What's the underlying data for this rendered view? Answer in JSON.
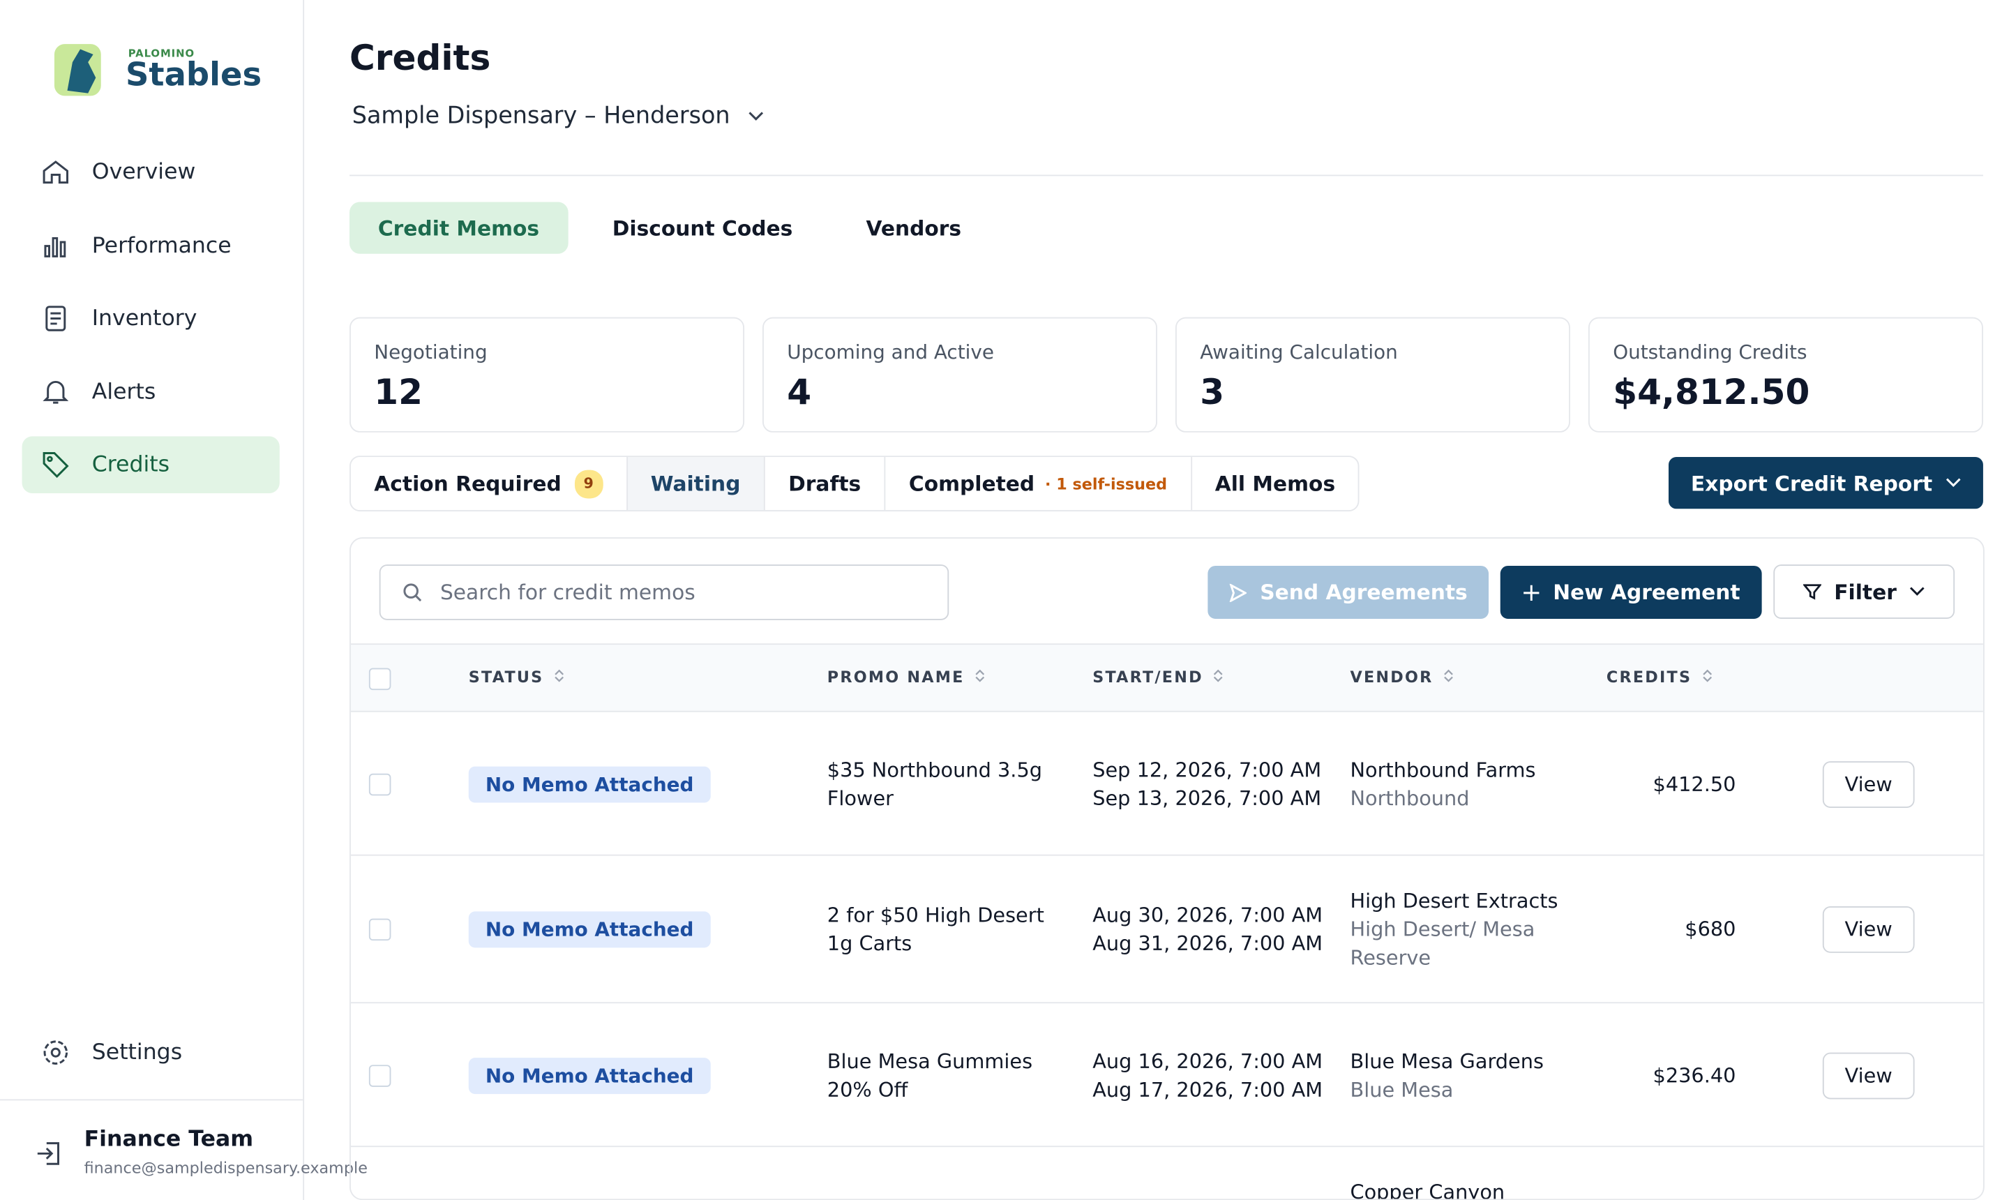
{
  "sidebar": {
    "brand_small": "PALOMINO",
    "brand": "Stables",
    "nav": [
      "Overview",
      "Performance",
      "Inventory",
      "Alerts",
      "Credits"
    ],
    "settings": "Settings",
    "user": {
      "name": "Finance Team",
      "email": "finance@sampledispensary.example"
    }
  },
  "header": {
    "title": "Credits",
    "location": "Sample Dispensary – Henderson"
  },
  "tabs": [
    "Credit Memos",
    "Discount Codes",
    "Vendors"
  ],
  "stats": [
    {
      "label": "Negotiating",
      "value": "12"
    },
    {
      "label": "Upcoming and Active",
      "value": "4"
    },
    {
      "label": "Awaiting Calculation",
      "value": "3"
    },
    {
      "label": "Outstanding Credits",
      "value": "$4,812.50"
    }
  ],
  "filters": [
    {
      "label": "Action Required",
      "badge": "9"
    },
    {
      "label": "Waiting"
    },
    {
      "label": "Drafts"
    },
    {
      "label": "Completed",
      "note": "· 1 self-issued"
    },
    {
      "label": "All Memos"
    }
  ],
  "export": "Export Credit Report",
  "search_placeholder": "Search for credit memos",
  "buttons": {
    "send": "Send Agreements",
    "new": "New Agreement",
    "filter": "Filter"
  },
  "table": {
    "columns": [
      "STATUS",
      "PROMO NAME",
      "START/END",
      "VENDOR",
      "CREDITS"
    ],
    "rows": [
      {
        "status": "No Memo Attached",
        "promo": "$35 Northbound 3.5g Flower",
        "start": "Sep 12, 2026, 7:00 AM",
        "end": "Sep 13, 2026, 7:00 AM",
        "vendor": "Northbound Farms",
        "brand": "Northbound",
        "credits": "$412.50",
        "action": "View"
      },
      {
        "status": "No Memo Attached",
        "promo": "2 for $50 High Desert 1g Carts",
        "start": "Aug 30, 2026, 7:00 AM",
        "end": "Aug 31, 2026, 7:00 AM",
        "vendor": "High Desert Extracts",
        "brand": "High Desert/ Mesa Reserve",
        "credits": "$680",
        "action": "View"
      },
      {
        "status": "No Memo Attached",
        "promo": "Blue Mesa Gummies 20% Off",
        "start": "Aug 16, 2026, 7:00 AM",
        "end": "Aug 17, 2026, 7:00 AM",
        "vendor": "Blue Mesa Gardens",
        "brand": "Blue Mesa",
        "credits": "$236.40",
        "action": "View"
      },
      {
        "vendor": "Copper Canyon"
      }
    ]
  }
}
